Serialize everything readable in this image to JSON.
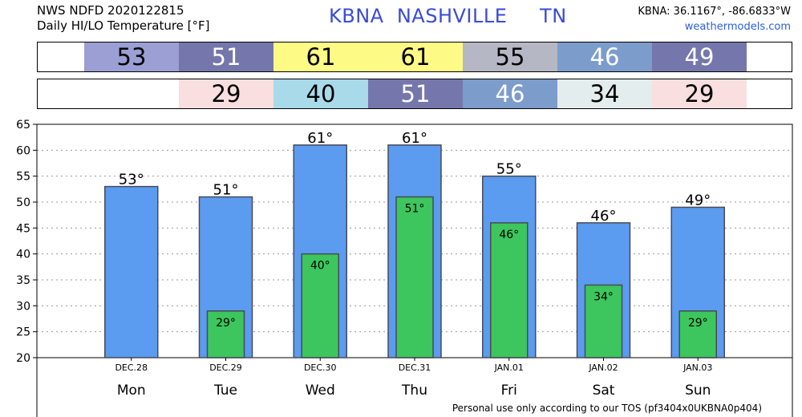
{
  "header": {
    "line1": "NWS NDFD 2020122815",
    "line2": "Daily HI/LO Temperature [°F]",
    "station": "KBNA  NASHVILLE     TN",
    "coords": "KBNA: 36.1167°, -86.6833°W",
    "site": "weathermodels.com"
  },
  "strips": {
    "hi": [
      {
        "value": "53",
        "color": "#9b9fd4",
        "textColor": "#000000"
      },
      {
        "value": "51",
        "color": "#7577ac",
        "textColor": "#ffffff"
      },
      {
        "value": "61",
        "color": "#fdfa86",
        "textColor": "#000000"
      },
      {
        "value": "61",
        "color": "#fdfa86",
        "textColor": "#000000"
      },
      {
        "value": "55",
        "color": "#b6b7c4",
        "textColor": "#000000"
      },
      {
        "value": "46",
        "color": "#7c9ccc",
        "textColor": "#ffffff"
      },
      {
        "value": "49",
        "color": "#7577ac",
        "textColor": "#ffffff"
      }
    ],
    "lo": [
      null,
      {
        "value": "29",
        "color": "#f9dfdf",
        "textColor": "#000000"
      },
      {
        "value": "40",
        "color": "#a8daea",
        "textColor": "#000000"
      },
      {
        "value": "51",
        "color": "#7577ac",
        "textColor": "#ffffff"
      },
      {
        "value": "46",
        "color": "#7c9ccc",
        "textColor": "#ffffff"
      },
      {
        "value": "34",
        "color": "#e3eded",
        "textColor": "#000000"
      },
      {
        "value": "29",
        "color": "#f9dfdf",
        "textColor": "#000000"
      }
    ]
  },
  "chart_data": {
    "type": "bar",
    "categories": [
      "DEC.28",
      "DEC.29",
      "DEC.30",
      "DEC.31",
      "JAN.01",
      "JAN.02",
      "JAN.03"
    ],
    "days": [
      "Mon",
      "Tue",
      "Wed",
      "Thu",
      "Fri",
      "Sat",
      "Sun"
    ],
    "series": [
      {
        "values": [
          53,
          51,
          61,
          61,
          55,
          46,
          49
        ],
        "color": "#5b9bf0",
        "labels": [
          "53°",
          "51°",
          "61°",
          "61°",
          "55°",
          "46°",
          "49°"
        ]
      },
      {
        "values": [
          null,
          29,
          40,
          51,
          46,
          34,
          29
        ],
        "color": "#3cc65d",
        "labels": [
          "",
          "29°",
          "40°",
          "51°",
          "46°",
          "34°",
          "29°"
        ]
      }
    ],
    "ylim": [
      20,
      65
    ],
    "yticks": [
      "20",
      "25",
      "30",
      "35",
      "40",
      "45",
      "50",
      "55",
      "60",
      "65"
    ],
    "grid": true
  },
  "footer": "Personal use only according to our TOS (pf3404x0UKBNA0p404)"
}
